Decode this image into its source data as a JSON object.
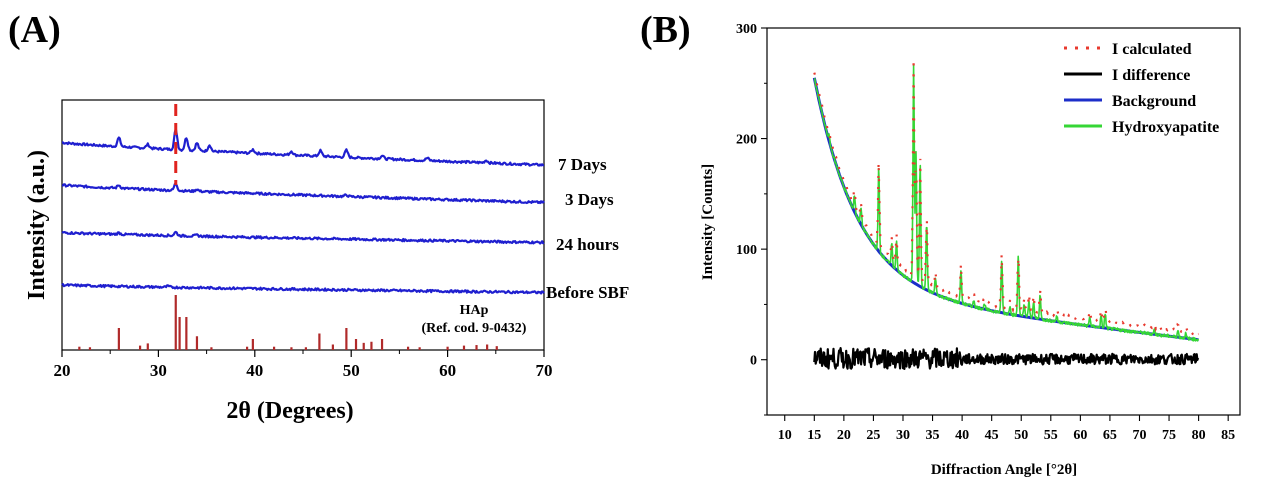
{
  "panel_a_label": "(A)",
  "panel_b_label": "(B)",
  "colors": {
    "pattern": "#1f1fcf",
    "reference_bars": "#b02a2a",
    "marker": "#e0241f",
    "calculated": "#e8392e",
    "difference": "#000000",
    "background": "#1c2ec9",
    "hydroxyapatite": "#35d635"
  },
  "chart_data": [
    {
      "type": "line",
      "xlabel": "2θ (Degrees)",
      "ylabel": "Intensity (a.u.)",
      "xlim": [
        20,
        70
      ],
      "xticks": [
        20,
        30,
        40,
        50,
        60,
        70
      ],
      "peak_marker_x": 31.8,
      "series": [
        {
          "name": "7 Days",
          "baseline_start": 0.83,
          "baseline_end": 0.74,
          "peaks": [
            [
              25.9,
              0.035
            ],
            [
              28.9,
              0.015
            ],
            [
              31.8,
              0.08
            ],
            [
              32.9,
              0.05
            ],
            [
              34.0,
              0.03
            ],
            [
              35.3,
              0.025
            ],
            [
              39.8,
              0.015
            ],
            [
              43.8,
              0.015
            ],
            [
              46.8,
              0.022
            ],
            [
              49.5,
              0.028
            ],
            [
              53.2,
              0.012
            ],
            [
              57.9,
              0.01
            ],
            [
              64.0,
              0.01
            ]
          ]
        },
        {
          "name": "3 Days",
          "baseline_start": 0.66,
          "baseline_end": 0.59,
          "peaks": [
            [
              25.9,
              0.012
            ],
            [
              31.8,
              0.028
            ],
            [
              34.0,
              0.008
            ],
            [
              49.5,
              0.006
            ]
          ]
        },
        {
          "name": "24 hours",
          "baseline_start": 0.47,
          "baseline_end": 0.43,
          "peaks": [
            [
              25.9,
              0.006
            ],
            [
              31.8,
              0.014
            ],
            [
              34.0,
              0.004
            ]
          ]
        },
        {
          "name": "Before SBF",
          "baseline_start": 0.26,
          "baseline_end": 0.23,
          "peaks": [
            [
              31.0,
              0.004
            ]
          ]
        }
      ],
      "reference": {
        "name": "HAp",
        "code": "(Ref. cod. 9-0432)",
        "bars": [
          [
            21.8,
            0.06
          ],
          [
            22.9,
            0.05
          ],
          [
            25.9,
            0.4
          ],
          [
            28.1,
            0.08
          ],
          [
            28.9,
            0.12
          ],
          [
            31.8,
            1.0
          ],
          [
            32.2,
            0.6
          ],
          [
            32.9,
            0.6
          ],
          [
            34.0,
            0.25
          ],
          [
            35.5,
            0.05
          ],
          [
            39.2,
            0.06
          ],
          [
            39.8,
            0.2
          ],
          [
            42.0,
            0.06
          ],
          [
            43.8,
            0.05
          ],
          [
            45.3,
            0.05
          ],
          [
            46.7,
            0.3
          ],
          [
            48.1,
            0.1
          ],
          [
            49.5,
            0.4
          ],
          [
            50.5,
            0.2
          ],
          [
            51.3,
            0.13
          ],
          [
            52.1,
            0.15
          ],
          [
            53.2,
            0.2
          ],
          [
            55.9,
            0.06
          ],
          [
            57.1,
            0.05
          ],
          [
            60.0,
            0.06
          ],
          [
            61.7,
            0.08
          ],
          [
            63.0,
            0.09
          ],
          [
            64.1,
            0.1
          ],
          [
            65.1,
            0.07
          ]
        ]
      }
    },
    {
      "type": "line",
      "xlabel": "Diffraction Angle [°2θ]",
      "ylabel": "Intensity [Counts]",
      "xlim": [
        7,
        87
      ],
      "ylim": [
        -50,
        300
      ],
      "xticks": [
        10,
        15,
        20,
        25,
        30,
        35,
        40,
        45,
        50,
        55,
        60,
        65,
        70,
        75,
        80,
        85
      ],
      "yticks": [
        0,
        100,
        200,
        300
      ],
      "legend_position": "top-right",
      "legend": [
        "I calculated",
        "I difference",
        "Background",
        "Hydroxyapatite"
      ],
      "background_curve": {
        "x_start": 15,
        "x_end": 80,
        "y_start": 255,
        "y_end": 18
      },
      "hydroxyapatite_peaks": [
        [
          17.5,
          5
        ],
        [
          21.8,
          15
        ],
        [
          22.9,
          15
        ],
        [
          25.9,
          75
        ],
        [
          28.1,
          20
        ],
        [
          28.9,
          25
        ],
        [
          31.8,
          195
        ],
        [
          32.2,
          120
        ],
        [
          32.9,
          110
        ],
        [
          34.0,
          60
        ],
        [
          35.5,
          15
        ],
        [
          39.8,
          30
        ],
        [
          42.0,
          6
        ],
        [
          43.8,
          5
        ],
        [
          46.7,
          48
        ],
        [
          48.1,
          8
        ],
        [
          49.5,
          55
        ],
        [
          50.5,
          12
        ],
        [
          51.3,
          15
        ],
        [
          52.1,
          16
        ],
        [
          53.2,
          22
        ],
        [
          56,
          5
        ],
        [
          61.6,
          8
        ],
        [
          63.5,
          10
        ],
        [
          64.2,
          13
        ],
        [
          72.5,
          4
        ],
        [
          76.5,
          6
        ],
        [
          77.8,
          4
        ]
      ],
      "difference_range": [
        -12,
        15
      ]
    }
  ]
}
